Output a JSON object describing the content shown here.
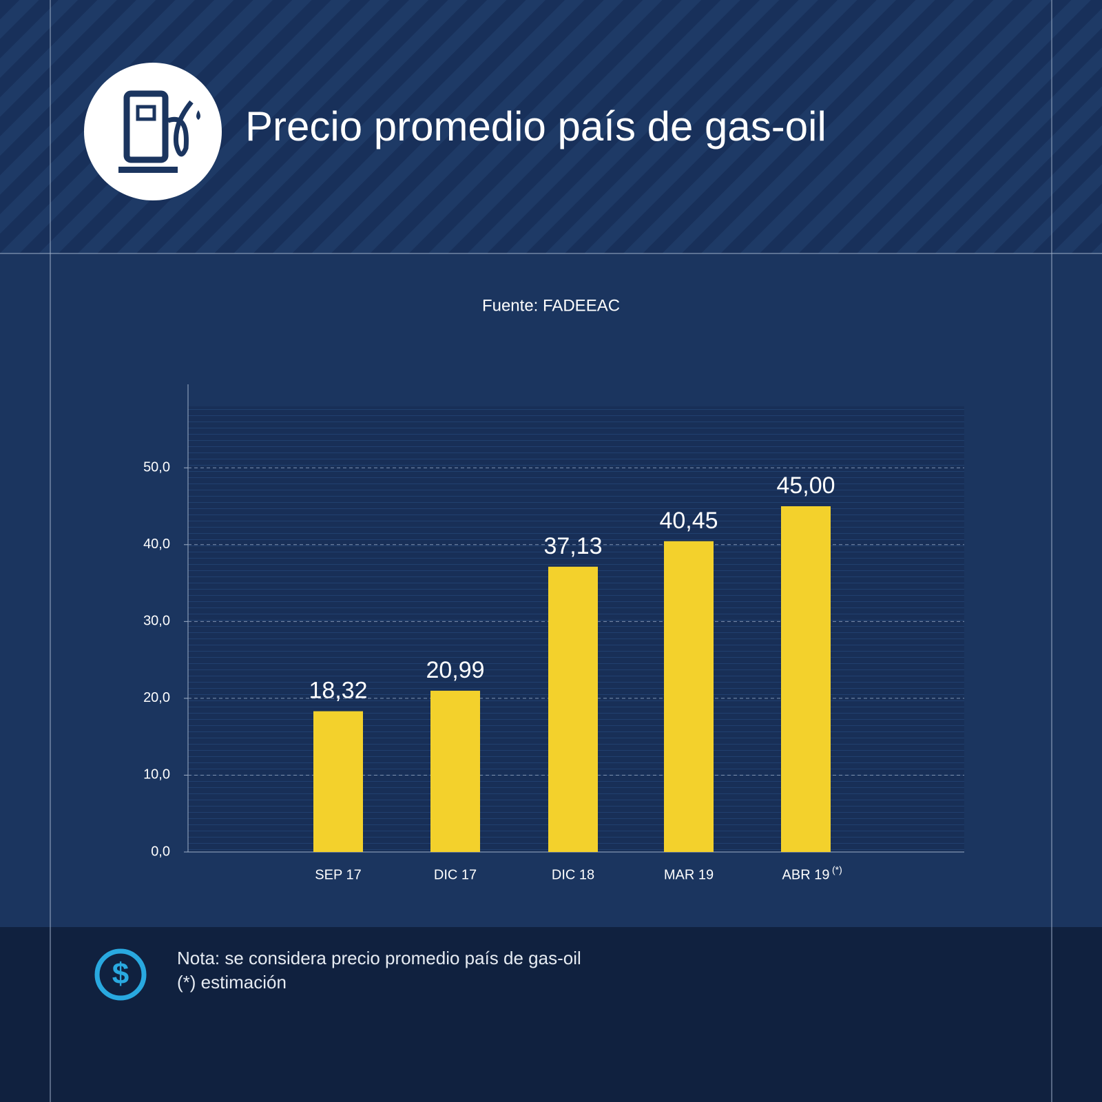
{
  "chart_data": {
    "type": "bar",
    "title": "Precio promedio país de gas-oil",
    "subtitle": "Fuente: FADEEAC",
    "categories": [
      "SEP 17",
      "DIC 17",
      "DIC 18",
      "MAR 19",
      "ABR 19"
    ],
    "category_marks": [
      null,
      null,
      null,
      null,
      "(*)"
    ],
    "values": [
      18.32,
      20.99,
      37.13,
      40.45,
      45.0
    ],
    "value_labels": [
      "18,32",
      "20,99",
      "37,13",
      "40,45",
      "45,00"
    ],
    "color": "#f3d12c",
    "ylim": [
      0,
      58
    ],
    "yticks": [
      {
        "value": 0,
        "label": "0,0"
      },
      {
        "value": 10,
        "label": "10,0"
      },
      {
        "value": 20,
        "label": "20,0"
      },
      {
        "value": 30,
        "label": "30,0"
      },
      {
        "value": 40,
        "label": "40,0"
      },
      {
        "value": 50,
        "label": "50,0"
      }
    ],
    "grid": true,
    "notes": [
      "Nota: se considera precio promedio país de gas-oil",
      "(*) estimación"
    ]
  }
}
